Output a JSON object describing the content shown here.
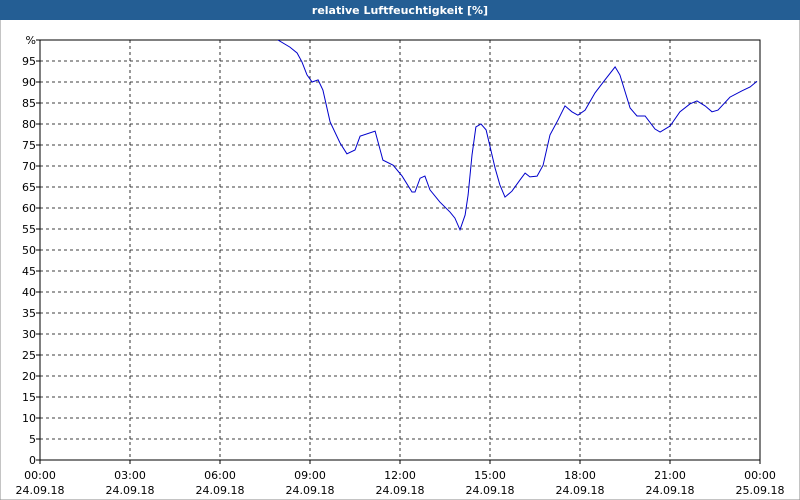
{
  "chart_data": {
    "type": "line",
    "title": "relative Luftfeuchtigkeit [%]",
    "x": [
      7.93,
      8.33,
      8.57,
      8.73,
      8.9,
      9.07,
      9.27,
      9.43,
      9.67,
      10.0,
      10.23,
      10.5,
      10.67,
      11.17,
      11.43,
      11.77,
      12.07,
      12.4,
      12.5,
      12.67,
      12.83,
      13.0,
      13.33,
      13.67,
      13.83,
      14.0,
      14.17,
      14.27,
      14.4,
      14.53,
      14.7,
      14.87,
      15.17,
      15.33,
      15.5,
      15.73,
      16.0,
      16.17,
      16.33,
      16.57,
      16.77,
      17.0,
      17.27,
      17.5,
      17.73,
      17.93,
      18.17,
      18.5,
      18.83,
      19.17,
      19.33,
      19.67,
      19.9,
      20.17,
      20.5,
      20.67,
      21.0,
      21.33,
      21.67,
      21.9,
      22.17,
      22.4,
      22.6,
      23.0,
      23.4,
      23.67,
      23.9
    ],
    "series": [
      {
        "name": "relative Luftfeuchtigkeit",
        "color": "#0000cc",
        "values": [
          100,
          98.3,
          96.9,
          94.8,
          91.7,
          90.0,
          90.5,
          88.1,
          80.5,
          75.5,
          72.9,
          73.8,
          77.1,
          78.3,
          71.4,
          70.2,
          67.6,
          63.8,
          63.8,
          67.1,
          67.6,
          64.3,
          61.4,
          59.0,
          57.6,
          54.8,
          58.3,
          63.1,
          72.6,
          79.3,
          80.0,
          78.6,
          69.5,
          65.5,
          62.6,
          64.0,
          66.7,
          68.3,
          67.4,
          67.6,
          70.2,
          77.4,
          81.0,
          84.3,
          82.9,
          82.1,
          83.3,
          87.4,
          90.5,
          93.6,
          91.7,
          83.8,
          81.9,
          81.9,
          78.8,
          78.1,
          79.5,
          82.9,
          84.8,
          85.5,
          84.3,
          82.9,
          83.3,
          86.4,
          87.9,
          88.8,
          90.2
        ]
      }
    ],
    "xlim": [
      0,
      24
    ],
    "ylim": [
      0,
      100
    ],
    "xticks": [
      {
        "value": 0,
        "label": "00:00",
        "date": "24.09.18"
      },
      {
        "value": 3,
        "label": "03:00",
        "date": "24.09.18"
      },
      {
        "value": 6,
        "label": "06:00",
        "date": "24.09.18"
      },
      {
        "value": 9,
        "label": "09:00",
        "date": "24.09.18"
      },
      {
        "value": 12,
        "label": "12:00",
        "date": "24.09.18"
      },
      {
        "value": 15,
        "label": "15:00",
        "date": "24.09.18"
      },
      {
        "value": 18,
        "label": "18:00",
        "date": "24.09.18"
      },
      {
        "value": 21,
        "label": "21:00",
        "date": "24.09.18"
      },
      {
        "value": 24,
        "label": "00:00",
        "date": "25.09.18"
      }
    ],
    "yticks": [
      0,
      5,
      10,
      15,
      20,
      25,
      30,
      35,
      40,
      45,
      50,
      55,
      60,
      65,
      70,
      75,
      80,
      85,
      90,
      95,
      {
        "value": 100,
        "label": "%"
      }
    ],
    "grid": true
  }
}
